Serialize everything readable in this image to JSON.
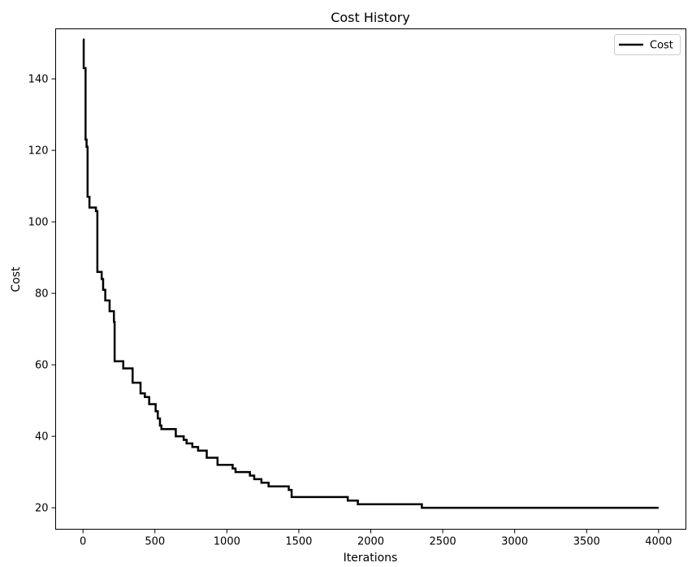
{
  "chart_data": {
    "type": "line",
    "title": "Cost History",
    "xlabel": "Iterations",
    "ylabel": "Cost",
    "xlim": [
      -190,
      4190
    ],
    "ylim": [
      14,
      154
    ],
    "xticks": [
      0,
      500,
      1000,
      1500,
      2000,
      2500,
      3000,
      3500,
      4000
    ],
    "yticks": [
      20,
      40,
      60,
      80,
      100,
      120,
      140
    ],
    "grid": false,
    "legend": {
      "position": "top-right",
      "entries": [
        "Cost"
      ]
    },
    "series": [
      {
        "name": "Cost",
        "color": "#000000",
        "step": true,
        "points": [
          [
            0,
            151
          ],
          [
            5,
            143
          ],
          [
            18,
            123
          ],
          [
            25,
            121
          ],
          [
            32,
            107
          ],
          [
            45,
            104
          ],
          [
            90,
            103
          ],
          [
            100,
            86
          ],
          [
            130,
            84
          ],
          [
            140,
            81
          ],
          [
            155,
            78
          ],
          [
            185,
            75
          ],
          [
            215,
            72
          ],
          [
            220,
            61
          ],
          [
            280,
            59
          ],
          [
            345,
            55
          ],
          [
            400,
            52
          ],
          [
            430,
            51
          ],
          [
            460,
            49
          ],
          [
            505,
            47
          ],
          [
            520,
            45
          ],
          [
            535,
            43
          ],
          [
            545,
            42
          ],
          [
            645,
            40
          ],
          [
            700,
            39
          ],
          [
            720,
            38
          ],
          [
            760,
            37
          ],
          [
            800,
            36
          ],
          [
            860,
            34
          ],
          [
            935,
            32
          ],
          [
            1040,
            31
          ],
          [
            1060,
            30
          ],
          [
            1160,
            29
          ],
          [
            1190,
            28
          ],
          [
            1240,
            27
          ],
          [
            1290,
            26
          ],
          [
            1430,
            25
          ],
          [
            1450,
            23
          ],
          [
            1840,
            22
          ],
          [
            1910,
            21
          ],
          [
            2355,
            20
          ],
          [
            4000,
            20
          ]
        ]
      }
    ]
  }
}
